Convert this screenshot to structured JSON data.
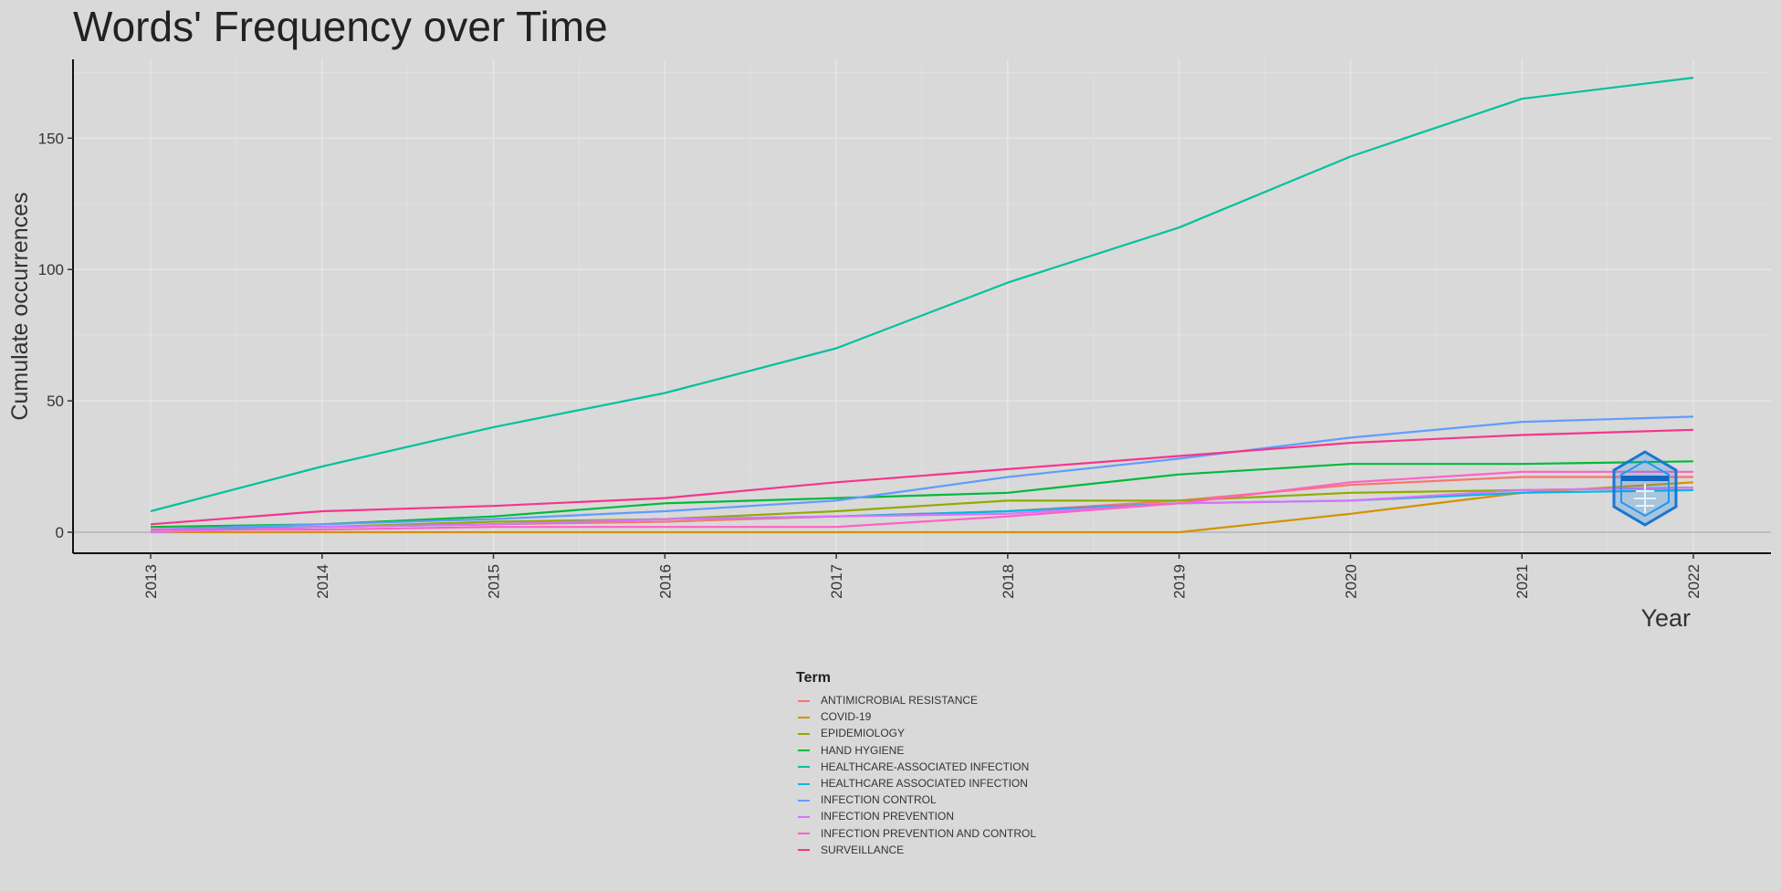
{
  "chart_data": {
    "type": "line",
    "title": "Words' Frequency over Time",
    "xlabel": "Year",
    "ylabel": "Cumulate occurrences",
    "x": [
      "2013",
      "2014",
      "2015",
      "2016",
      "2017",
      "2018",
      "2019",
      "2020",
      "2021",
      "2022"
    ],
    "xlim": [
      2013,
      2022
    ],
    "ylim": [
      -8,
      180
    ],
    "yticks": [
      0,
      50,
      100,
      150
    ],
    "grid": true,
    "legend_title": "Term",
    "legend_position": "bottom",
    "series": [
      {
        "name": "ANTIMICROBIAL RESISTANCE",
        "color": "#F8766D",
        "values": [
          1,
          2,
          3,
          4,
          6,
          8,
          12,
          18,
          21,
          21
        ]
      },
      {
        "name": "COVID-19",
        "color": "#D39200",
        "values": [
          0,
          0,
          0,
          0,
          0,
          0,
          0,
          7,
          15,
          19
        ]
      },
      {
        "name": "EPIDEMIOLOGY",
        "color": "#93AA00",
        "values": [
          1,
          2,
          4,
          5,
          8,
          12,
          12,
          15,
          16,
          17
        ]
      },
      {
        "name": "HAND HYGIENE",
        "color": "#00BA38",
        "values": [
          2,
          3,
          6,
          11,
          13,
          15,
          22,
          26,
          26,
          27
        ]
      },
      {
        "name": "HEALTHCARE-ASSOCIATED INFECTION",
        "color": "#00C19F",
        "values": [
          8,
          25,
          40,
          53,
          70,
          95,
          116,
          143,
          165,
          173
        ]
      },
      {
        "name": "HEALTHCARE ASSOCIATED INFECTION",
        "color": "#00B9E3",
        "values": [
          1,
          2,
          3,
          5,
          6,
          8,
          11,
          12,
          15,
          16
        ]
      },
      {
        "name": "INFECTION CONTROL",
        "color": "#619CFF",
        "values": [
          1,
          3,
          5,
          8,
          12,
          21,
          28,
          36,
          42,
          44
        ]
      },
      {
        "name": "INFECTION PREVENTION",
        "color": "#DB72FB",
        "values": [
          0,
          2,
          3,
          5,
          6,
          7,
          11,
          12,
          16,
          17
        ]
      },
      {
        "name": "INFECTION PREVENTION AND CONTROL",
        "color": "#FF61C3",
        "values": [
          1,
          1,
          2,
          2,
          2,
          6,
          11,
          19,
          23,
          23
        ]
      },
      {
        "name": "SURVEILLANCE",
        "color": "#F8348C",
        "values": [
          3,
          8,
          10,
          13,
          19,
          24,
          29,
          34,
          37,
          39
        ]
      }
    ]
  }
}
